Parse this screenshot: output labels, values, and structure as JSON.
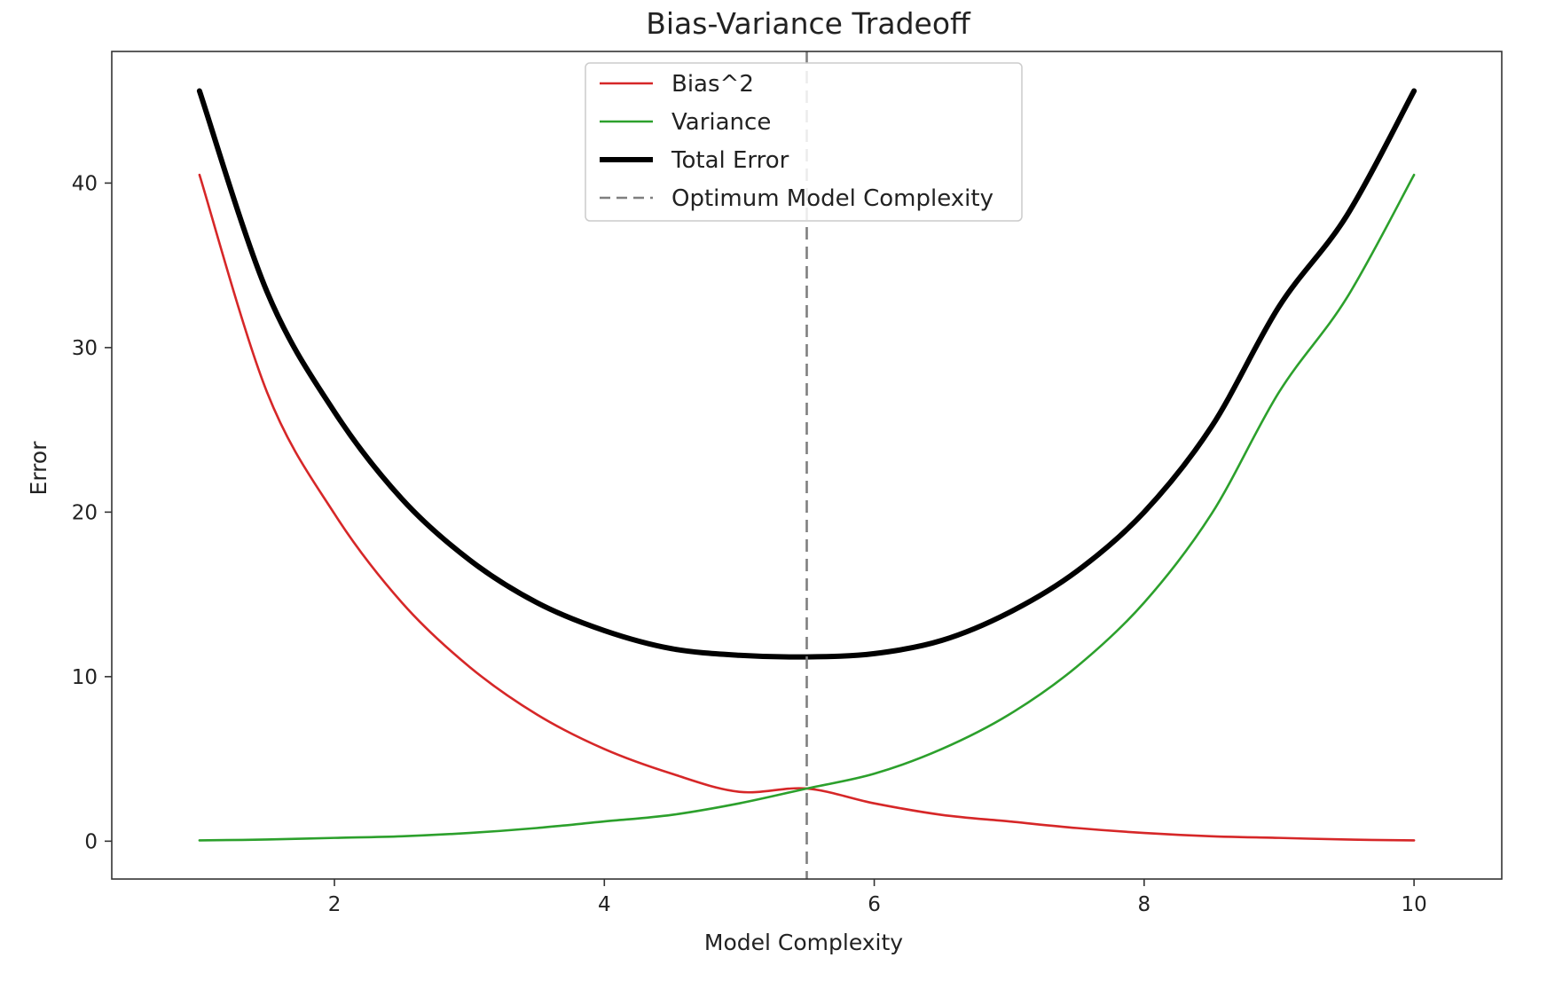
{
  "chart_data": {
    "type": "line",
    "title": "Bias-Variance Tradeoff",
    "xlabel": "Model Complexity",
    "ylabel": "Error",
    "xlim": [
      0.35,
      10.65
    ],
    "ylim": [
      -2.3,
      48.0
    ],
    "xticks": [
      2,
      4,
      6,
      8,
      10
    ],
    "xtick_labels": [
      "2",
      "4",
      "6",
      "8",
      "10"
    ],
    "yticks": [
      0,
      10,
      20,
      30,
      40
    ],
    "ytick_labels": [
      "0",
      "10",
      "20",
      "30",
      "40"
    ],
    "grid": false,
    "legend_position": "upper center",
    "x": [
      1.0,
      1.5,
      2.0,
      2.5,
      3.0,
      3.5,
      4.0,
      4.5,
      5.0,
      5.5,
      6.0,
      6.5,
      7.0,
      7.5,
      8.0,
      8.5,
      9.0,
      9.5,
      10.0
    ],
    "series": [
      {
        "name": "Bias^2",
        "color": "#d62728",
        "style": "solid",
        "values": [
          40.5,
          27.3,
          19.9,
          14.5,
          10.6,
          7.7,
          5.6,
          4.1,
          3.0,
          3.2,
          2.3,
          1.6,
          1.2,
          0.8,
          0.5,
          0.3,
          0.2,
          0.1,
          0.05
        ]
      },
      {
        "name": "Variance",
        "color": "#2ca02c",
        "style": "solid",
        "values": [
          0.05,
          0.1,
          0.2,
          0.3,
          0.5,
          0.8,
          1.2,
          1.6,
          2.3,
          3.2,
          4.1,
          5.6,
          7.7,
          10.6,
          14.5,
          19.9,
          27.3,
          33.0,
          40.5
        ]
      },
      {
        "name": "Total Error",
        "color": "#000000",
        "style": "thick",
        "values": [
          45.6,
          33.4,
          26.1,
          20.8,
          17.1,
          14.5,
          12.8,
          11.7,
          11.3,
          11.2,
          11.4,
          12.2,
          13.9,
          16.4,
          20.0,
          25.2,
          32.5,
          38.0,
          45.6
        ]
      }
    ],
    "optimum": {
      "name": "Optimum Model Complexity",
      "x": 5.5,
      "color": "#7f7f7f",
      "style": "dashed"
    }
  }
}
